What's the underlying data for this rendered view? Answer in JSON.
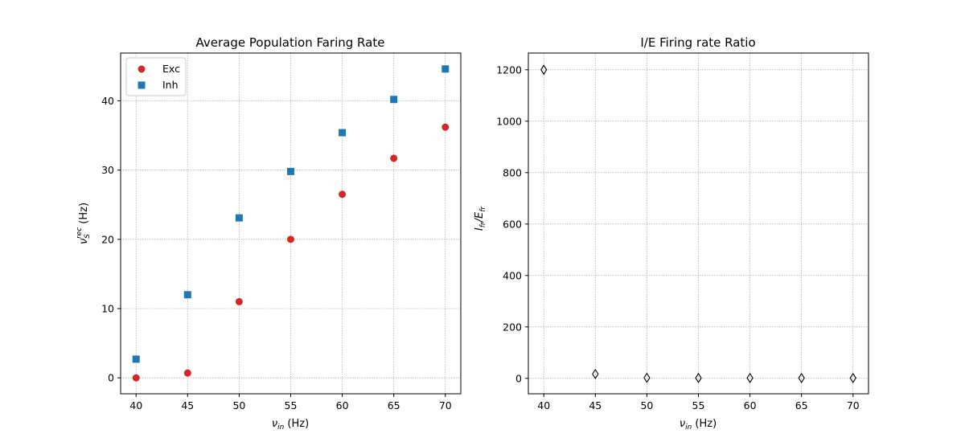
{
  "chart_data": [
    {
      "type": "scatter",
      "title": "Average Population Faring Rate",
      "xlabel_main": "ν",
      "xlabel_sub": "in",
      "xlabel_unit": " (Hz)",
      "ylabel_main": "ν",
      "ylabel_sub": "S",
      "ylabel_sup": "rec",
      "ylabel_unit": " (Hz)",
      "xlim": [
        38.5,
        71.5
      ],
      "ylim": [
        -2.3,
        46.9
      ],
      "xticks": [
        40,
        45,
        50,
        55,
        60,
        65,
        70
      ],
      "yticks": [
        0,
        10,
        20,
        30,
        40
      ],
      "grid": true,
      "legend_position": "top-left",
      "series": [
        {
          "name": "Exc",
          "marker": "circle",
          "color": "#d62728",
          "x": [
            40,
            45,
            50,
            55,
            60,
            65,
            70
          ],
          "y": [
            0.0,
            0.7,
            11.0,
            20.0,
            26.5,
            31.7,
            36.2
          ]
        },
        {
          "name": "Inh",
          "marker": "square",
          "color": "#1f77b4",
          "x": [
            40,
            45,
            50,
            55,
            60,
            65,
            70
          ],
          "y": [
            2.7,
            12.0,
            23.1,
            29.8,
            35.4,
            40.2,
            44.6
          ]
        }
      ]
    },
    {
      "type": "scatter",
      "title": "I/E Firing rate Ratio",
      "xlabel_main": "ν",
      "xlabel_sub": "in",
      "xlabel_unit": " (Hz)",
      "ylabel_i": "I",
      "ylabel_i_sub": "fr",
      "ylabel_slash": "/",
      "ylabel_e": "E",
      "ylabel_e_sub": "fr",
      "xlim": [
        38.5,
        71.5
      ],
      "ylim": [
        -60,
        1265
      ],
      "xticks": [
        40,
        45,
        50,
        55,
        60,
        65,
        70
      ],
      "yticks": [
        0,
        200,
        400,
        600,
        800,
        1000,
        1200
      ],
      "grid": true,
      "series": [
        {
          "marker": "thin-diamond",
          "color": "#000000",
          "x": [
            40,
            45,
            50,
            55,
            60,
            65,
            70
          ],
          "y": [
            1200,
            17,
            2.1,
            1.5,
            1.34,
            1.27,
            1.23
          ]
        }
      ]
    }
  ]
}
